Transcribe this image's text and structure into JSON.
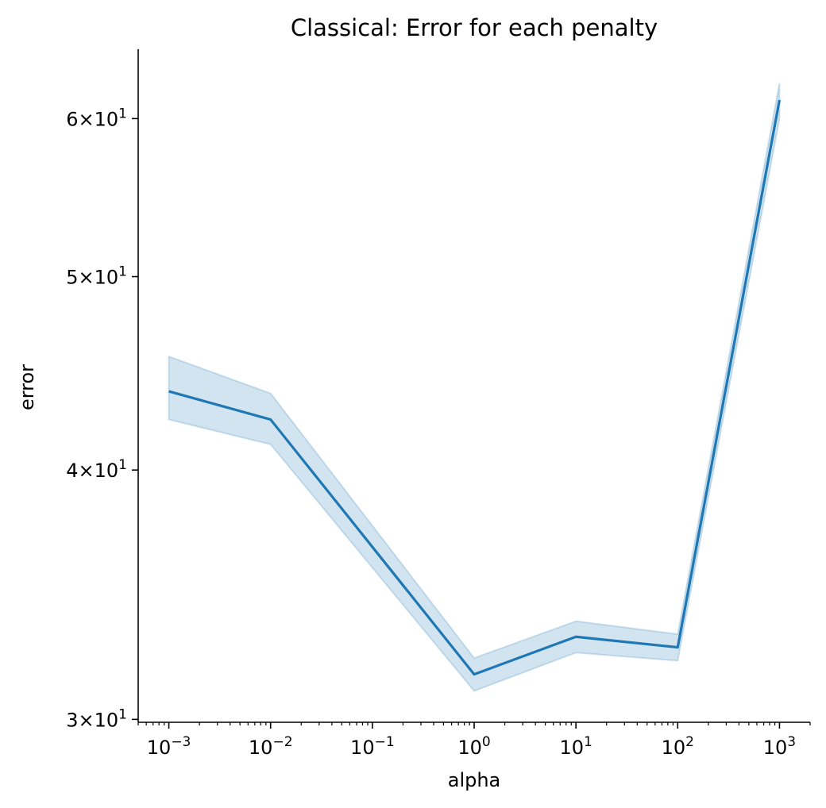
{
  "chart_data": {
    "type": "line",
    "title": "Classical: Error for each penalty",
    "xlabel": "alpha",
    "ylabel": "error",
    "x_scale": "log",
    "y_scale": "log",
    "xlim": [
      0.0005,
      2000
    ],
    "ylim": [
      29.9,
      65
    ],
    "x_ticks": [
      {
        "value": 0.001,
        "base": "10",
        "exp": "−3"
      },
      {
        "value": 0.01,
        "base": "10",
        "exp": "−2"
      },
      {
        "value": 0.1,
        "base": "10",
        "exp": "−1"
      },
      {
        "value": 1,
        "base": "10",
        "exp": "0"
      },
      {
        "value": 10,
        "base": "10",
        "exp": "1"
      },
      {
        "value": 100,
        "base": "10",
        "exp": "2"
      },
      {
        "value": 1000,
        "base": "10",
        "exp": "3"
      }
    ],
    "y_ticks": [
      {
        "value": 30,
        "mant": "3",
        "base": "10",
        "exp": "1"
      },
      {
        "value": 40,
        "mant": "4",
        "base": "10",
        "exp": "1"
      },
      {
        "value": 50,
        "mant": "5",
        "base": "10",
        "exp": "1"
      },
      {
        "value": 60,
        "mant": "6",
        "base": "10",
        "exp": "1"
      }
    ],
    "grid": false,
    "series": [
      {
        "x": [
          0.001,
          0.01,
          1,
          10,
          100,
          1000
        ],
        "y": [
          43.8,
          42.4,
          31.6,
          33.0,
          32.6,
          61.3
        ],
        "ci_lower": [
          42.4,
          41.2,
          31.0,
          32.4,
          32.1,
          60.0
        ],
        "ci_upper": [
          45.6,
          43.7,
          32.2,
          33.6,
          33.1,
          62.5
        ],
        "color": "#1f77b4",
        "band_color": "#1f77b4"
      }
    ]
  }
}
